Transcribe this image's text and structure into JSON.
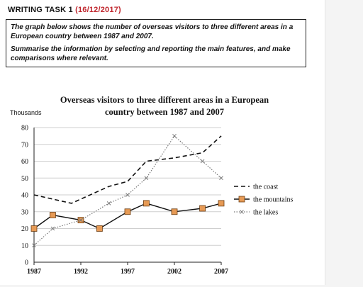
{
  "task": {
    "heading": "WRITING TASK 1",
    "date": "(16/12/2017)",
    "prompt_line1": "The graph below shows the number of overseas visitors to three different areas in a European country between 1987 and 2007.",
    "prompt_line2": "Summarise the information by selecting and reporting the main features, and make comparisons where relevant."
  },
  "chart_data": {
    "type": "line",
    "title_line1": "Overseas visitors to three different areas in a European",
    "title_line2": "country between 1987 and 2007",
    "ylabel": "Thousands",
    "xlabel": "",
    "x_ticks": [
      "1987",
      "1992",
      "1997",
      "2002",
      "2007"
    ],
    "y_ticks": [
      0,
      10,
      20,
      30,
      40,
      50,
      60,
      70,
      80
    ],
    "ylim": [
      0,
      80
    ],
    "xlim": [
      1987,
      2007
    ],
    "grid": "horizontal",
    "legend": "right",
    "series": [
      {
        "name": "the coast",
        "style": "dashed",
        "color": "#111111",
        "x": [
          1987,
          1991,
          1995,
          1997,
          1999,
          2002,
          2005,
          2007
        ],
        "values": [
          40,
          35,
          45,
          48,
          60,
          62,
          65,
          75
        ]
      },
      {
        "name": "the mountains",
        "style": "solid-square",
        "color": "#111111",
        "marker_color": "#e69a55",
        "x": [
          1987,
          1989,
          1992,
          1994,
          1997,
          1999,
          2002,
          2005,
          2007
        ],
        "values": [
          20,
          28,
          25,
          20,
          30,
          35,
          30,
          32,
          35
        ]
      },
      {
        "name": "the lakes",
        "style": "dotted-x",
        "color": "#777777",
        "x": [
          1987,
          1989,
          1992,
          1995,
          1997,
          1999,
          2002,
          2005,
          2007
        ],
        "values": [
          10,
          20,
          25,
          35,
          40,
          50,
          75,
          60,
          50
        ]
      }
    ]
  }
}
